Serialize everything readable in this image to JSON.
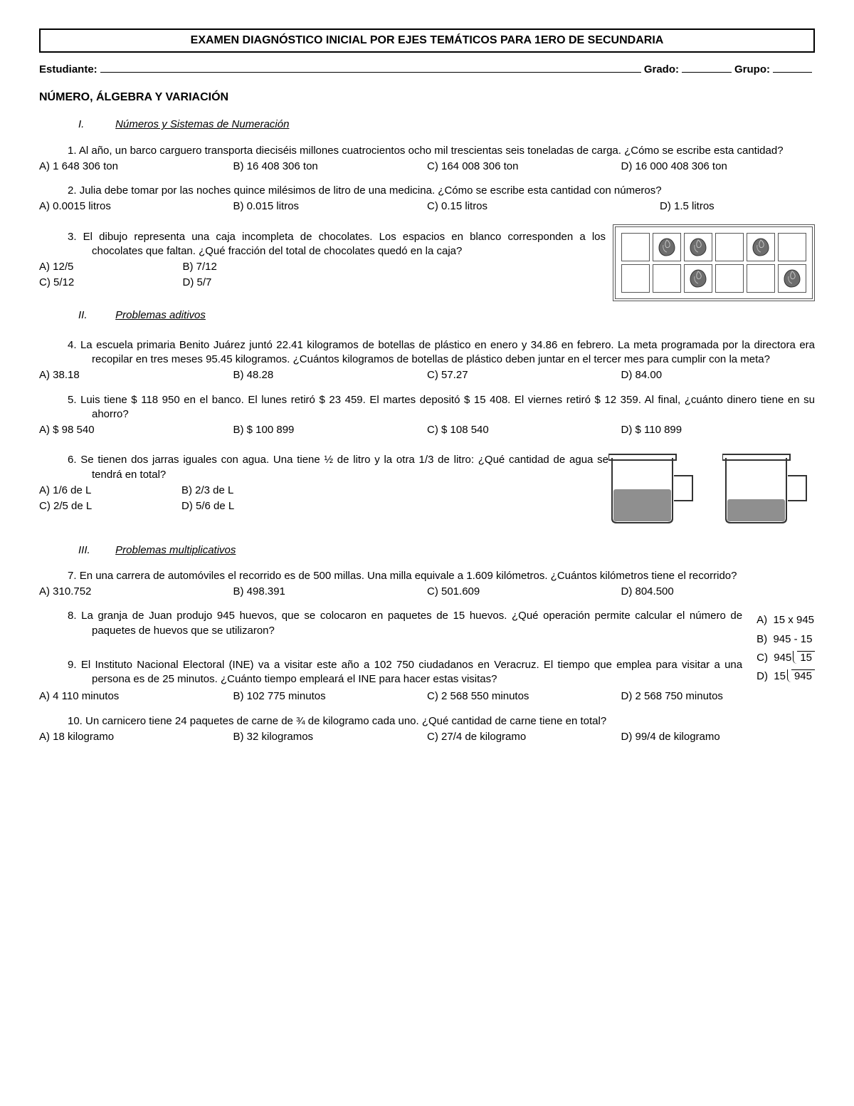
{
  "title": "EXAMEN DIAGNÓSTICO INICIAL POR EJES TEMÁTICOS PARA 1ERO DE SECUNDARIA",
  "labels": {
    "student": "Estudiante:",
    "grade": "Grado:",
    "group": "Grupo:"
  },
  "section1": "NÚMERO, ÁLGEBRA Y VARIACIÓN",
  "roman": {
    "i": "I.",
    "i_txt": "Números y Sistemas de Numeración",
    "ii": "II.",
    "ii_txt": "Problemas aditivos",
    "iii": "III.",
    "iii_txt": "Problemas multiplicativos"
  },
  "q1": {
    "n": "1.",
    "txt": "Al año, un barco carguero transporta dieciséis millones cuatrocientos ocho mil trescientas seis toneladas de carga. ¿Cómo se escribe esta cantidad?",
    "a": "A) 1 648 306 ton",
    "b": "B) 16 408 306 ton",
    "c": "C) 164 008 306 ton",
    "d": "D) 16 000 408 306 ton"
  },
  "q2": {
    "n": "2.",
    "txt": "Julia debe tomar por las noches quince milésimos de litro de una medicina. ¿Cómo se escribe esta cantidad con números?",
    "a": "A) 0.0015 litros",
    "b": "B) 0.015 litros",
    "c": "C) 0.15 litros",
    "d": "D) 1.5 litros"
  },
  "q3": {
    "n": "3.",
    "txt": "El dibujo representa una caja incompleta de chocolates. Los espacios en blanco corresponden a los chocolates que faltan. ¿Qué fracción del total de chocolates quedó en la caja?",
    "a": "A) 12/5",
    "b": "B) 7/12",
    "c": "C) 5/12",
    "d": "D) 5/7",
    "grid": [
      [
        0,
        1,
        1,
        0,
        1,
        0
      ],
      [
        0,
        0,
        1,
        0,
        0,
        1
      ]
    ],
    "choco_color": "#6d6d6d",
    "cell_border": "#555555"
  },
  "q4": {
    "n": "4.",
    "txt": "La escuela primaria Benito Juárez juntó 22.41 kilogramos de botellas de plástico en enero y 34.86 en febrero. La meta programada por la directora era recopilar en tres meses 95.45 kilogramos. ¿Cuántos kilogramos de botellas de plástico deben juntar en el tercer mes para cumplir con la meta?",
    "a": "A) 38.18",
    "b": "B) 48.28",
    "c": "C) 57.27",
    "d": "D) 84.00"
  },
  "q5": {
    "n": "5.",
    "txt": "Luis tiene $ 118 950 en el banco. El lunes retiró $ 23 459. El martes depositó $ 15 408. El viernes retiró $ 12 359. Al final, ¿cuánto dinero tiene en su ahorro?",
    "a": "A) $ 98 540",
    "b": "B) $ 100 899",
    "c": "C) $ 108 540",
    "d": "D) $ 110 899"
  },
  "q6": {
    "n": "6.",
    "txt": "Se tienen dos jarras iguales con agua. Una tiene ½ de litro y la otra 1/3 de litro: ¿Qué cantidad de agua se tendrá en total?",
    "a": "A) 1/6 de L",
    "b": "B) 2/3 de L",
    "c": "C) 2/5 de L",
    "d": "D) 5/6 de L",
    "jug_fill": "#8f8f8f",
    "jug_stroke": "#333333",
    "fill1": 0.5,
    "fill2": 0.33
  },
  "q7": {
    "n": "7.",
    "txt": "En una carrera de automóviles el recorrido es de 500 millas. Una milla equivale a 1.609 kilómetros. ¿Cuántos kilómetros tiene el recorrido?",
    "a": "A) 310.752",
    "b": "B) 498.391",
    "c": "C) 501.609",
    "d": "D) 804.500"
  },
  "q8": {
    "n": "8.",
    "txt": "La granja de Juan produjo 945 huevos, que se colocaron en paquetes de 15 huevos. ¿Qué operación permite calcular el número de paquetes de huevos que se utilizaron?",
    "opA_l": "A)",
    "opA": "15 x 945",
    "opB_l": "B)",
    "opB": "945 - 15",
    "opC_l": "C)",
    "opC_divisor": "945",
    "opC_dividend": "15",
    "opD_l": "D)",
    "opD_divisor": "15",
    "opD_dividend": "945"
  },
  "q9": {
    "n": "9.",
    "txt": "El Instituto Nacional Electoral (INE) va a visitar este año a 102 750 ciudadanos en Veracruz. El tiempo que emplea para visitar a una persona es de 25 minutos. ¿Cuánto tiempo empleará el INE para hacer estas visitas?",
    "a": "A) 4 110 minutos",
    "b": "B) 102 775 minutos",
    "c": "C) 2 568 550 minutos",
    "d": "D) 2 568 750 minutos"
  },
  "q10": {
    "n": "10.",
    "txt": "Un carnicero tiene 24 paquetes de carne de ¾ de kilogramo cada uno. ¿Qué cantidad de carne tiene en total?",
    "a": "A) 18 kilogramo",
    "b": "B) 32 kilogramos",
    "c": "C) 27/4 de kilogramo",
    "d": "D) 99/4 de kilogramo"
  }
}
